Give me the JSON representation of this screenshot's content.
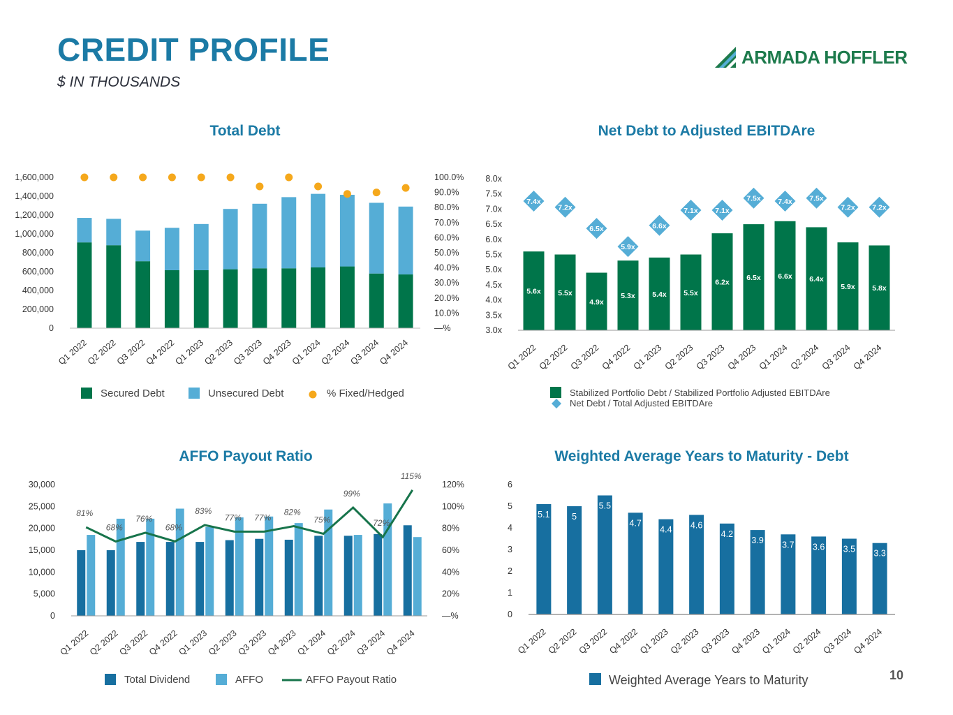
{
  "header": {
    "title": "CREDIT PROFILE",
    "subtitle": "$ IN THOUSANDS",
    "logo_text": "ARMADA HOFFLER",
    "page_number": "10"
  },
  "colors": {
    "dark_green": "#00754a",
    "light_blue": "#55add6",
    "orange": "#f5a81c",
    "steel_blue": "#1b7aa5",
    "navy_bar": "#176fa0",
    "line_green": "#17744b"
  },
  "chart_data": [
    {
      "id": "total_debt",
      "type": "bar",
      "stacked": true,
      "title": "Total Debt",
      "categories": [
        "Q1 2022",
        "Q2 2022",
        "Q3 2022",
        "Q4 2022",
        "Q1 2023",
        "Q2 2023",
        "Q3 2023",
        "Q4 2023",
        "Q1 2024",
        "Q2 2024",
        "Q3 2024",
        "Q4 2024"
      ],
      "series": [
        {
          "name": "Secured Debt",
          "values": [
            910000,
            880000,
            710000,
            615000,
            615000,
            625000,
            635000,
            635000,
            645000,
            655000,
            580000,
            570000
          ]
        },
        {
          "name": "Unsecured Debt",
          "values": [
            260000,
            280000,
            325000,
            450000,
            490000,
            640000,
            685000,
            755000,
            780000,
            760000,
            750000,
            720000
          ]
        }
      ],
      "secondary_series": {
        "name": "% Fixed/Hedged",
        "type": "scatter",
        "values": [
          100,
          100,
          100,
          100,
          100,
          100,
          94,
          100,
          94,
          89,
          90,
          93
        ]
      },
      "ylim": [
        0,
        1600000
      ],
      "yticks": [
        "0",
        "200,000",
        "400,000",
        "600,000",
        "800,000",
        "1,000,000",
        "1,200,000",
        "1,400,000",
        "1,600,000"
      ],
      "y2ticks": [
        "—%",
        "10.0%",
        "20.0%",
        "30.0%",
        "40.0%",
        "50.0%",
        "60.0%",
        "70.0%",
        "80.0%",
        "90.0%",
        "100.0%"
      ],
      "y2lim": [
        0,
        100
      ],
      "legend_position": "bottom"
    },
    {
      "id": "net_debt",
      "type": "bar",
      "title": "Net Debt to Adjusted EBITDAre",
      "categories": [
        "Q1 2022",
        "Q2 2022",
        "Q3 2022",
        "Q4 2022",
        "Q1 2023",
        "Q2 2023",
        "Q3 2023",
        "Q4 2023",
        "Q1 2024",
        "Q2 2024",
        "Q3 2024",
        "Q4 2024"
      ],
      "series": [
        {
          "name": "Stabilized Portfolio Debt / Stabilized Portfolio Adjusted EBITDAre",
          "values": [
            5.6,
            5.5,
            4.9,
            5.3,
            5.4,
            5.5,
            6.2,
            6.5,
            6.6,
            6.4,
            5.9,
            5.8
          ],
          "labels": [
            "5.6x",
            "5.5x",
            "4.9x",
            "5.3x",
            "5.4x",
            "5.5x",
            "6.2x",
            "6.5x",
            "6.6x",
            "6.4x",
            "5.9x",
            "5.8x"
          ]
        },
        {
          "name": "Net Debt / Total Adjusted EBITDAre",
          "type": "scatter",
          "values": [
            7.4,
            7.2,
            6.5,
            5.9,
            6.6,
            7.1,
            7.1,
            7.5,
            7.4,
            7.5,
            7.2,
            7.2
          ],
          "labels": [
            "7.4x",
            "7.2x",
            "6.5x",
            "5.9x",
            "6.6x",
            "7.1x",
            "7.1x",
            "7.5x",
            "7.4x",
            "7.5x",
            "7.2x",
            "7.2x"
          ]
        }
      ],
      "ylim": [
        3.0,
        8.0
      ],
      "yticks": [
        "3.0x",
        "3.5x",
        "4.0x",
        "4.5x",
        "5.0x",
        "5.5x",
        "6.0x",
        "6.5x",
        "7.0x",
        "7.5x",
        "8.0x"
      ],
      "legend_position": "bottom"
    },
    {
      "id": "affo",
      "type": "bar",
      "title": "AFFO Payout Ratio",
      "categories": [
        "Q1 2022",
        "Q2 2022",
        "Q3 2022",
        "Q4 2022",
        "Q1 2023",
        "Q2 2023",
        "Q3 2023",
        "Q4 2023",
        "Q1 2024",
        "Q2 2024",
        "Q3 2024",
        "Q4 2024"
      ],
      "series": [
        {
          "name": "Total Dividend",
          "values": [
            15000,
            15000,
            16900,
            16900,
            16900,
            17300,
            17600,
            17400,
            18300,
            18300,
            18700,
            20700
          ]
        },
        {
          "name": "AFFO",
          "values": [
            18500,
            22200,
            22200,
            24500,
            20300,
            22500,
            22700,
            21200,
            24300,
            18500,
            25700,
            18000
          ]
        },
        {
          "name": "AFFO Payout Ratio",
          "type": "line",
          "values": [
            81,
            68,
            76,
            68,
            83,
            77,
            77,
            82,
            75,
            99,
            72,
            115
          ],
          "labels": [
            "81%",
            "68%",
            "76%",
            "68%",
            "83%",
            "77%",
            "77%",
            "82%",
            "75%",
            "99%",
            "72%",
            "115%"
          ]
        }
      ],
      "ylim": [
        0,
        30000
      ],
      "yticks": [
        "0",
        "5,000",
        "10,000",
        "15,000",
        "20,000",
        "25,000",
        "30,000"
      ],
      "y2lim": [
        0,
        120
      ],
      "y2ticks": [
        "—%",
        "20%",
        "40%",
        "60%",
        "80%",
        "100%",
        "120%"
      ],
      "legend_position": "bottom"
    },
    {
      "id": "maturity",
      "type": "bar",
      "title": "Weighted Average Years to Maturity - Debt",
      "categories": [
        "Q1 2022",
        "Q2 2022",
        "Q3 2022",
        "Q4 2022",
        "Q1 2023",
        "Q2 2023",
        "Q3 2023",
        "Q4 2023",
        "Q1 2024",
        "Q2 2024",
        "Q3 2024",
        "Q4 2024"
      ],
      "series": [
        {
          "name": "Weighted Average Years to Maturity",
          "values": [
            5.1,
            5,
            5.5,
            4.7,
            4.4,
            4.6,
            4.2,
            3.9,
            3.7,
            3.6,
            3.5,
            3.3
          ],
          "labels": [
            "5.1",
            "5",
            "5.5",
            "4.7",
            "4.4",
            "4.6",
            "4.2",
            "3.9",
            "3.7",
            "3.6",
            "3.5",
            "3.3"
          ]
        }
      ],
      "ylim": [
        0,
        6
      ],
      "yticks": [
        "0",
        "1",
        "2",
        "3",
        "4",
        "5",
        "6"
      ],
      "legend_position": "bottom"
    }
  ]
}
